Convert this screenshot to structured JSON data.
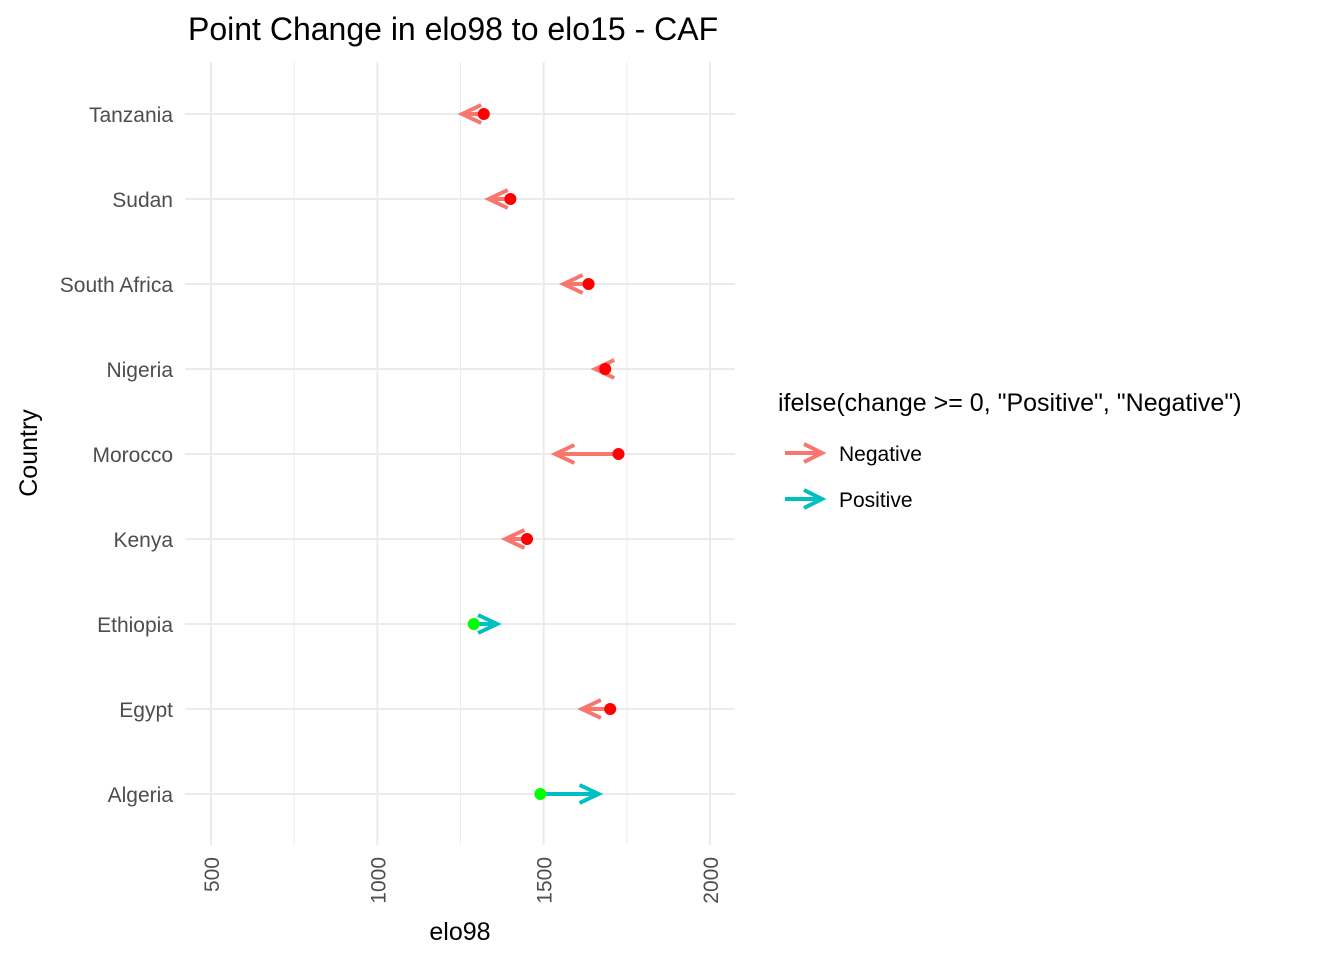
{
  "chart_data": {
    "type": "arrow-dot",
    "title": "Point Change in elo98 to elo15 - CAF",
    "xlabel": "elo98",
    "ylabel": "Country",
    "xlim": [
      460,
      2070
    ],
    "x_ticks": [
      500,
      1000,
      1500,
      2000
    ],
    "x_tick_labels": [
      "500",
      "1000",
      "1500",
      "2000"
    ],
    "x_minor_ticks": [
      750,
      1250,
      1750
    ],
    "grid": true,
    "legend": {
      "position": "right",
      "title": "ifelse(change >= 0, \"Positive\", \"Negative\")",
      "entries": [
        {
          "label": "Negative",
          "color": "#F8766D"
        },
        {
          "label": "Positive",
          "color": "#00BFC4"
        }
      ]
    },
    "colors": {
      "Negative": "#F8766D",
      "Positive": "#00BFC4",
      "point_negative": "#FF0000",
      "point_positive": "#00FF00"
    },
    "countries": [
      "Algeria",
      "Egypt",
      "Ethiopia",
      "Kenya",
      "Morocco",
      "Nigeria",
      "South Africa",
      "Sudan",
      "Tanzania"
    ],
    "series": [
      {
        "country": "Algeria",
        "elo98": 1490,
        "elo15": 1665,
        "direction": "Positive"
      },
      {
        "country": "Egypt",
        "elo98": 1700,
        "elo15": 1615,
        "direction": "Negative"
      },
      {
        "country": "Ethiopia",
        "elo98": 1290,
        "elo15": 1360,
        "direction": "Positive"
      },
      {
        "country": "Kenya",
        "elo98": 1450,
        "elo15": 1385,
        "direction": "Negative"
      },
      {
        "country": "Morocco",
        "elo98": 1725,
        "elo15": 1535,
        "direction": "Negative"
      },
      {
        "country": "Nigeria",
        "elo98": 1685,
        "elo15": 1655,
        "direction": "Negative"
      },
      {
        "country": "South Africa",
        "elo98": 1635,
        "elo15": 1560,
        "direction": "Negative"
      },
      {
        "country": "Sudan",
        "elo98": 1400,
        "elo15": 1335,
        "direction": "Negative"
      },
      {
        "country": "Tanzania",
        "elo98": 1320,
        "elo15": 1255,
        "direction": "Negative"
      }
    ]
  }
}
